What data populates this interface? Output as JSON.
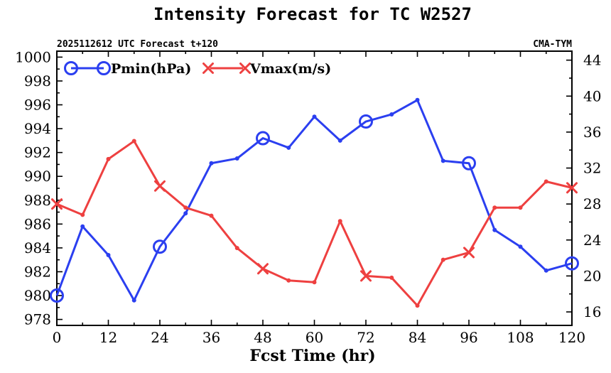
{
  "chart_data": {
    "type": "line",
    "title": "Intensity Forecast for TC W2527",
    "subtitle_left": "2025112612 UTC Forecast t+120",
    "subtitle_right": "CMA-TYM",
    "xlabel": "Fcst Time (hr)",
    "x": [
      0,
      6,
      12,
      18,
      24,
      30,
      36,
      42,
      48,
      54,
      60,
      66,
      72,
      78,
      84,
      90,
      96,
      102,
      108,
      114,
      120
    ],
    "xlim": [
      0,
      120
    ],
    "xticks": [
      0,
      12,
      24,
      36,
      48,
      60,
      72,
      84,
      96,
      108,
      120
    ],
    "ylim_left": [
      977.5,
      1000.5
    ],
    "yticks_left": [
      978,
      980,
      982,
      984,
      986,
      988,
      990,
      992,
      994,
      996,
      998,
      1000
    ],
    "ylim_right": [
      14.5,
      45
    ],
    "yticks_right": [
      16,
      20,
      24,
      28,
      32,
      36,
      40,
      44
    ],
    "legend_position": "top-left",
    "series": [
      {
        "name": "Pmin(hPa)",
        "axis": "left",
        "color": "#2b3ff0",
        "marker": "circle",
        "marker_every": 4,
        "values": [
          980.0,
          985.8,
          983.4,
          979.6,
          984.1,
          986.9,
          991.1,
          991.5,
          993.2,
          992.4,
          995.0,
          993.0,
          994.6,
          995.2,
          996.4,
          991.3,
          991.1,
          985.5,
          984.1,
          982.1,
          982.7
        ]
      },
      {
        "name": "Vmax(m/s)",
        "axis": "right",
        "color": "#ee4040",
        "marker": "x",
        "marker_every": 4,
        "values": [
          28.0,
          26.8,
          33.0,
          35.0,
          30.0,
          27.6,
          26.7,
          23.1,
          20.8,
          19.5,
          19.3,
          26.1,
          20.0,
          19.8,
          16.7,
          21.8,
          22.6,
          27.6,
          27.6,
          30.5,
          29.8
        ]
      }
    ]
  }
}
